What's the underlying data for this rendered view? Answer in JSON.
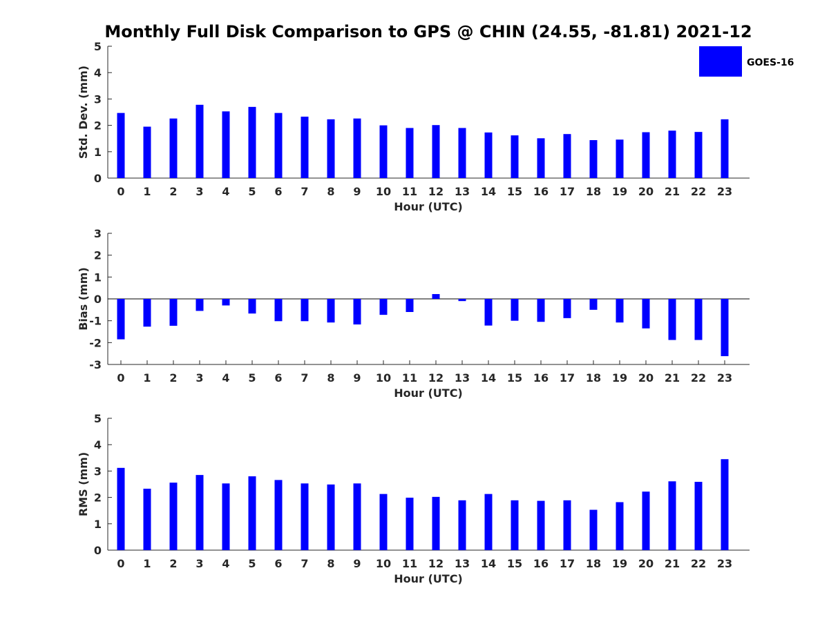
{
  "figure": {
    "title": "Monthly Full Disk Comparison to GPS @ CHIN (24.55, -81.81) 2021-12"
  },
  "legend": {
    "label": "GOES-16",
    "color": "#0000ff",
    "placement": "top-right"
  },
  "chart_data": [
    {
      "type": "bar",
      "title": "Monthly Full Disk Comparison to GPS @ CHIN (24.55, -81.81) 2021-12",
      "xlabel": "Hour (UTC)",
      "ylabel": "Std. Dev. (mm)",
      "ylim": [
        0,
        5
      ],
      "yticks": [
        0,
        1,
        2,
        3,
        4,
        5
      ],
      "grid": false,
      "categories": [
        "0",
        "1",
        "2",
        "3",
        "4",
        "5",
        "6",
        "7",
        "8",
        "9",
        "10",
        "11",
        "12",
        "13",
        "14",
        "15",
        "16",
        "17",
        "18",
        "19",
        "20",
        "21",
        "22",
        "23"
      ],
      "series": [
        {
          "name": "GOES-16",
          "color": "#0000ff",
          "values": [
            2.47,
            1.95,
            2.26,
            2.78,
            2.53,
            2.7,
            2.47,
            2.33,
            2.23,
            2.26,
            2.0,
            1.9,
            2.01,
            1.9,
            1.73,
            1.62,
            1.51,
            1.67,
            1.44,
            1.46,
            1.74,
            1.8,
            1.75,
            2.23
          ]
        }
      ]
    },
    {
      "type": "bar",
      "title": "",
      "xlabel": "Hour (UTC)",
      "ylabel": "Bias (mm)",
      "ylim": [
        -3,
        3
      ],
      "yticks": [
        -3,
        -2,
        -1,
        0,
        1,
        2,
        3
      ],
      "grid": false,
      "categories": [
        "0",
        "1",
        "2",
        "3",
        "4",
        "5",
        "6",
        "7",
        "8",
        "9",
        "10",
        "11",
        "12",
        "13",
        "14",
        "15",
        "16",
        "17",
        "18",
        "19",
        "20",
        "21",
        "22",
        "23"
      ],
      "series": [
        {
          "name": "GOES-16",
          "color": "#0000ff",
          "values": [
            -1.85,
            -1.27,
            -1.23,
            -0.55,
            -0.3,
            -0.67,
            -1.02,
            -1.02,
            -1.08,
            -1.17,
            -0.73,
            -0.6,
            0.22,
            -0.1,
            -1.22,
            -1.0,
            -1.05,
            -0.88,
            -0.5,
            -1.08,
            -1.35,
            -1.88,
            -1.88,
            -2.62
          ]
        }
      ]
    },
    {
      "type": "bar",
      "title": "",
      "xlabel": "Hour (UTC)",
      "ylabel": "RMS (mm)",
      "ylim": [
        0,
        5
      ],
      "yticks": [
        0,
        1,
        2,
        3,
        4,
        5
      ],
      "grid": false,
      "categories": [
        "0",
        "1",
        "2",
        "3",
        "4",
        "5",
        "6",
        "7",
        "8",
        "9",
        "10",
        "11",
        "12",
        "13",
        "14",
        "15",
        "16",
        "17",
        "18",
        "19",
        "20",
        "21",
        "22",
        "23"
      ],
      "series": [
        {
          "name": "GOES-16",
          "color": "#0000ff",
          "values": [
            3.12,
            2.33,
            2.56,
            2.85,
            2.53,
            2.8,
            2.66,
            2.53,
            2.49,
            2.53,
            2.13,
            1.99,
            2.02,
            1.89,
            2.13,
            1.89,
            1.87,
            1.89,
            1.53,
            1.82,
            2.22,
            2.61,
            2.59,
            3.45
          ]
        }
      ]
    }
  ]
}
